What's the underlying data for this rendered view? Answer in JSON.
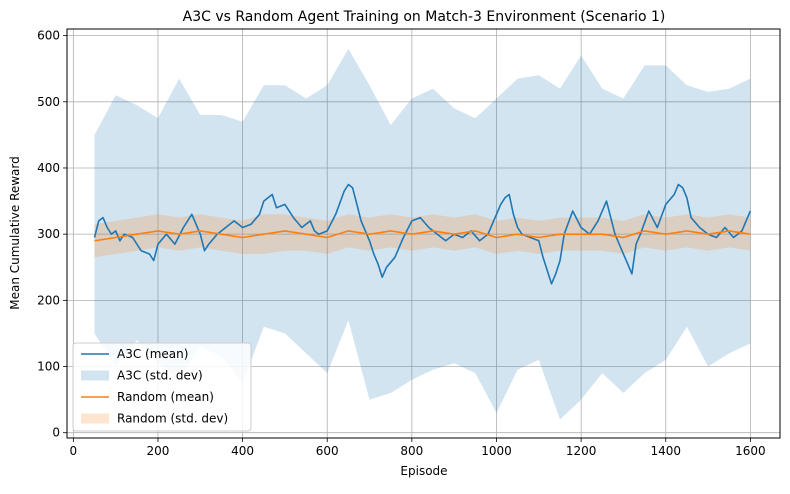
{
  "chart_data": {
    "type": "line",
    "title": "A3C vs Random Agent Training on Match-3 Environment (Scenario 1)",
    "xlabel": "Episode",
    "ylabel": "Mean Cumulative Reward",
    "xlim": [
      -15,
      1670
    ],
    "ylim": [
      -8,
      610
    ],
    "xticks": [
      0,
      200,
      400,
      600,
      800,
      1000,
      1200,
      1400,
      1600
    ],
    "yticks": [
      0,
      100,
      200,
      300,
      400,
      500,
      600
    ],
    "grid": true,
    "legend_position": "lower-left",
    "legend": [
      {
        "label": "A3C (mean)",
        "kind": "line",
        "color": "#1f77b4"
      },
      {
        "label": "A3C (std. dev)",
        "kind": "band",
        "color": "#1f77b4"
      },
      {
        "label": "Random (mean)",
        "kind": "line",
        "color": "#ff7f0e"
      },
      {
        "label": "Random (std. dev)",
        "kind": "band",
        "color": "#ff7f0e"
      }
    ],
    "series": [
      {
        "name": "A3C (mean)",
        "color": "#1f77b4",
        "x": [
          50,
          60,
          70,
          80,
          90,
          100,
          110,
          120,
          140,
          160,
          180,
          190,
          200,
          220,
          240,
          260,
          280,
          300,
          310,
          320,
          340,
          360,
          380,
          400,
          420,
          440,
          450,
          460,
          470,
          480,
          500,
          520,
          540,
          560,
          570,
          580,
          600,
          620,
          640,
          650,
          660,
          670,
          680,
          700,
          710,
          720,
          730,
          740,
          760,
          780,
          800,
          820,
          840,
          860,
          880,
          900,
          920,
          940,
          960,
          980,
          1000,
          1010,
          1020,
          1030,
          1040,
          1050,
          1060,
          1080,
          1100,
          1110,
          1120,
          1130,
          1140,
          1150,
          1160,
          1180,
          1200,
          1220,
          1240,
          1260,
          1280,
          1300,
          1310,
          1320,
          1330,
          1340,
          1360,
          1380,
          1400,
          1420,
          1430,
          1440,
          1450,
          1460,
          1480,
          1500,
          1520,
          1540,
          1560,
          1580,
          1590,
          1600
        ],
        "y": [
          295,
          320,
          325,
          310,
          300,
          305,
          290,
          300,
          295,
          275,
          270,
          260,
          285,
          300,
          285,
          310,
          330,
          300,
          275,
          285,
          300,
          310,
          320,
          310,
          315,
          330,
          350,
          355,
          360,
          340,
          345,
          325,
          310,
          320,
          305,
          300,
          305,
          330,
          365,
          375,
          370,
          345,
          320,
          290,
          270,
          255,
          235,
          250,
          265,
          295,
          320,
          325,
          310,
          300,
          290,
          300,
          295,
          305,
          290,
          300,
          330,
          345,
          355,
          360,
          330,
          310,
          300,
          295,
          290,
          265,
          245,
          225,
          240,
          260,
          300,
          335,
          310,
          300,
          320,
          350,
          300,
          270,
          255,
          240,
          285,
          300,
          335,
          310,
          345,
          360,
          375,
          370,
          355,
          325,
          310,
          300,
          295,
          310,
          295,
          305,
          320,
          335
        ]
      },
      {
        "name": "A3C (std. dev)",
        "color": "#1f77b4",
        "x": [
          50,
          100,
          150,
          200,
          250,
          300,
          350,
          400,
          450,
          500,
          550,
          600,
          650,
          700,
          750,
          800,
          850,
          900,
          950,
          1000,
          1050,
          1100,
          1150,
          1200,
          1250,
          1300,
          1350,
          1400,
          1450,
          1500,
          1550,
          1600
        ],
        "upper": [
          450,
          510,
          495,
          475,
          535,
          480,
          480,
          470,
          525,
          525,
          505,
          525,
          580,
          525,
          465,
          505,
          520,
          490,
          475,
          505,
          535,
          540,
          520,
          570,
          520,
          505,
          555,
          555,
          525,
          515,
          520,
          535
        ],
        "lower": [
          150,
          100,
          140,
          105,
          80,
          130,
          115,
          75,
          160,
          150,
          120,
          90,
          170,
          50,
          60,
          80,
          95,
          105,
          90,
          30,
          95,
          110,
          20,
          50,
          90,
          60,
          90,
          110,
          160,
          100,
          120,
          135
        ]
      },
      {
        "name": "Random (mean)",
        "color": "#ff7f0e",
        "x": [
          50,
          100,
          150,
          200,
          250,
          300,
          350,
          400,
          450,
          500,
          550,
          600,
          650,
          700,
          750,
          800,
          850,
          900,
          950,
          1000,
          1050,
          1100,
          1150,
          1200,
          1250,
          1300,
          1350,
          1400,
          1450,
          1500,
          1550,
          1600
        ],
        "y": [
          290,
          295,
          300,
          305,
          300,
          305,
          300,
          295,
          300,
          305,
          300,
          295,
          305,
          300,
          305,
          300,
          305,
          300,
          305,
          295,
          300,
          295,
          300,
          300,
          300,
          295,
          305,
          300,
          305,
          300,
          305,
          300
        ]
      },
      {
        "name": "Random (std. dev)",
        "color": "#ff7f0e",
        "x": [
          50,
          100,
          150,
          200,
          250,
          300,
          350,
          400,
          450,
          500,
          550,
          600,
          650,
          700,
          750,
          800,
          850,
          900,
          950,
          1000,
          1050,
          1100,
          1150,
          1200,
          1250,
          1300,
          1350,
          1400,
          1450,
          1500,
          1550,
          1600
        ],
        "upper": [
          315,
          320,
          325,
          330,
          325,
          330,
          325,
          320,
          330,
          330,
          325,
          320,
          330,
          325,
          330,
          325,
          330,
          325,
          330,
          320,
          325,
          320,
          325,
          325,
          325,
          320,
          330,
          325,
          330,
          325,
          330,
          325
        ],
        "lower": [
          265,
          270,
          275,
          280,
          275,
          280,
          275,
          270,
          270,
          275,
          275,
          270,
          280,
          275,
          280,
          275,
          280,
          275,
          280,
          270,
          275,
          270,
          275,
          275,
          275,
          270,
          280,
          275,
          280,
          275,
          280,
          275
        ]
      }
    ]
  }
}
